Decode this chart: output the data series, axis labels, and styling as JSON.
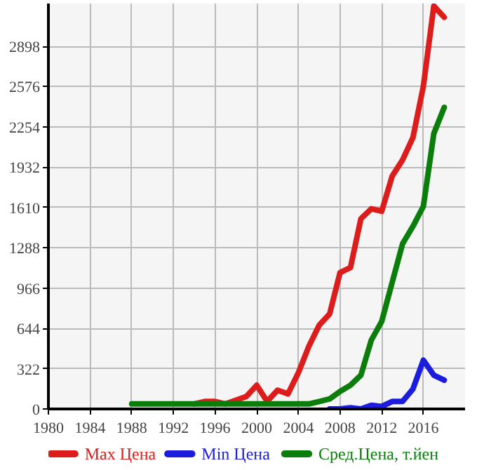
{
  "chart_data": {
    "type": "line",
    "xlim": [
      1980,
      2020
    ],
    "ylim": [
      0,
      3240
    ],
    "xticks": [
      1980,
      1984,
      1988,
      1992,
      1996,
      2000,
      2004,
      2008,
      2012,
      2016
    ],
    "yticks": [
      0,
      322,
      644,
      966,
      1288,
      1610,
      1932,
      2254,
      2576,
      2898
    ],
    "grid": true,
    "legend": "bottom",
    "line_style": "solid",
    "series": [
      {
        "name": "Max Цена",
        "color": "#dd1c1c",
        "x": [
          1994,
          1995,
          1996,
          1997,
          1998,
          1999,
          2000,
          2001,
          2002,
          2003,
          2004,
          2005,
          2006,
          2007,
          2008,
          2009,
          2010,
          2011,
          2012,
          2013,
          2014,
          2015,
          2016,
          2017,
          2018
        ],
        "values": [
          40,
          60,
          60,
          40,
          70,
          100,
          190,
          60,
          150,
          120,
          290,
          500,
          670,
          760,
          1090,
          1130,
          1520,
          1600,
          1580,
          1860,
          1990,
          2170,
          2580,
          3220,
          3130
        ]
      },
      {
        "name": "Min Цена",
        "color": "#1c1cdd",
        "x": [
          2007,
          2008,
          2009,
          2010,
          2011,
          2012,
          2013,
          2014,
          2015,
          2016,
          2017,
          2018
        ],
        "values": [
          0,
          0,
          10,
          0,
          30,
          20,
          60,
          60,
          160,
          390,
          270,
          230
        ]
      },
      {
        "name": "Сред.Цена, т.йен",
        "color": "#0a7d0a",
        "x": [
          1988,
          1989,
          1990,
          1991,
          1992,
          1993,
          1994,
          1995,
          1996,
          1997,
          1998,
          1999,
          2000,
          2001,
          2002,
          2003,
          2004,
          2005,
          2006,
          2007,
          2008,
          2009,
          2010,
          2011,
          2012,
          2013,
          2014,
          2015,
          2016,
          2017,
          2018
        ],
        "values": [
          40,
          40,
          40,
          40,
          40,
          40,
          40,
          40,
          40,
          40,
          40,
          40,
          40,
          40,
          40,
          40,
          40,
          40,
          60,
          80,
          140,
          190,
          270,
          550,
          700,
          1010,
          1320,
          1460,
          1620,
          2200,
          2410
        ]
      }
    ]
  }
}
